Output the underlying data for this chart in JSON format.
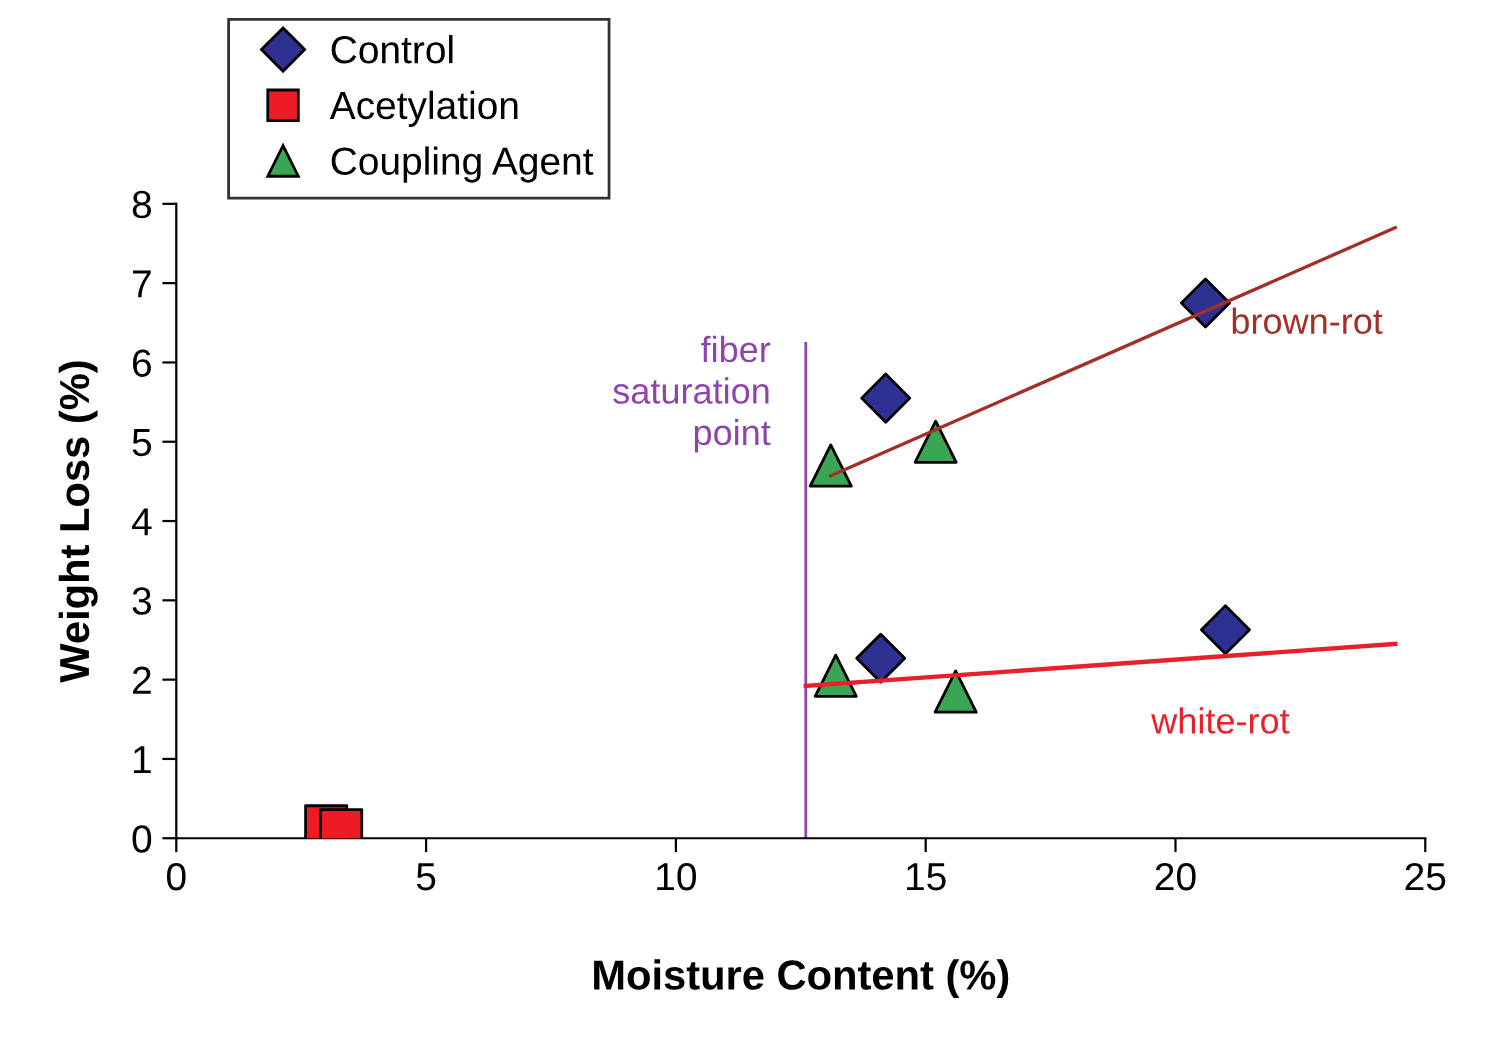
{
  "chart_data": {
    "type": "scatter",
    "xlabel": "Moisture Content (%)",
    "ylabel": "Weight Loss (%)",
    "xlim": [
      0,
      25
    ],
    "xticks": [
      0,
      5,
      10,
      15,
      20,
      25
    ],
    "ylim": [
      0,
      8
    ],
    "yticks": [
      0,
      1,
      2,
      3,
      4,
      5,
      6,
      7,
      8
    ],
    "grid": false,
    "legend": "top left",
    "series": [
      {
        "name": "Control",
        "color": "#2e3192",
        "marker": "diamond",
        "x": [
          14.2,
          20.6,
          14.1,
          21.0
        ],
        "values": [
          5.55,
          6.75,
          2.27,
          2.63
        ]
      },
      {
        "name": "Acetylation",
        "color": "#ed1c24",
        "marker": "square",
        "x": [
          3.0,
          3.3
        ],
        "values": [
          0.15,
          0.1
        ]
      },
      {
        "name": "Coupling Agent",
        "color": "#3aa655",
        "marker": "triangle",
        "x": [
          13.1,
          15.2,
          13.2,
          15.6
        ],
        "values": [
          4.7,
          5.0,
          2.05,
          1.85
        ]
      },
      {
        "type": "line",
        "color": "#a0302a",
        "x": [
          13.1,
          24.4
        ],
        "values": [
          4.57,
          7.7
        ],
        "marker": "none"
      },
      {
        "type": "line",
        "color": "#e8202a",
        "x": [
          12.6,
          24.4
        ],
        "values": [
          1.92,
          2.45
        ],
        "marker": "none"
      }
    ],
    "ref_lines": [
      {
        "axis": "x",
        "value": 12.6,
        "label": "fiber\nsaturation\npoint",
        "color": "#8e44ad"
      }
    ],
    "annotations": [
      "brown-rot",
      "white-rot"
    ]
  }
}
